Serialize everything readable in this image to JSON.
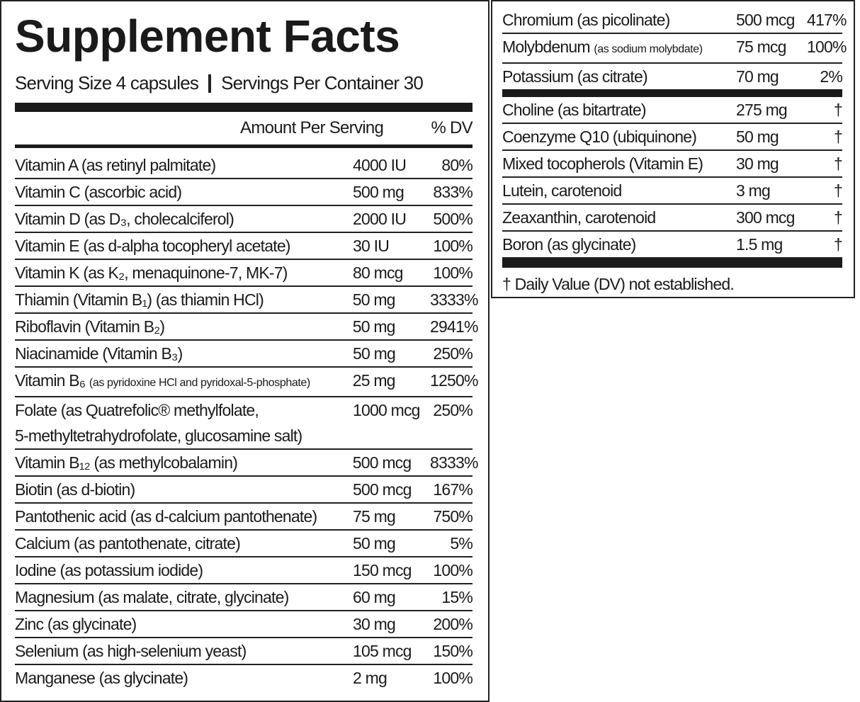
{
  "header": {
    "title": "Supplement Facts",
    "serving_size": "Serving Size 4 capsules",
    "servings_per_container": "Servings Per Container 30"
  },
  "columns": {
    "amount": "Amount Per Serving",
    "dv": "% DV"
  },
  "left_rows": [
    {
      "name": "Vitamin A (as retinyl palmitate)",
      "amount": "4000 IU",
      "dv": "80%"
    },
    {
      "name": "Vitamin C (ascorbic acid)",
      "amount": "500 mg",
      "dv": "833%"
    },
    {
      "name": "Vitamin D (as D₃, cholecalciferol)",
      "amount": "2000 IU",
      "dv": "500%"
    },
    {
      "name": "Vitamin E (as d-alpha tocopheryl acetate)",
      "amount": "30 IU",
      "dv": "100%"
    },
    {
      "name": "Vitamin K (as K₂, menaquinone-7, MK-7)",
      "amount": "80 mcg",
      "dv": "100%"
    },
    {
      "name": "Thiamin (Vitamin B₁) (as thiamin HCl)",
      "amount": "50 mg",
      "dv": "3333%"
    },
    {
      "name": "Riboflavin (Vitamin B₂)",
      "amount": "50 mg",
      "dv": "2941%"
    },
    {
      "name": "Niacinamide (Vitamin B₃)",
      "amount": "50 mg",
      "dv": "250%"
    },
    {
      "name": "Vitamin B₆",
      "note": "(as pyridoxine HCl and pyridoxal-5-phosphate)",
      "amount": "25 mg",
      "dv": "1250%"
    },
    {
      "name": "Folate (as Quatrefolic® methylfolate,\n 5-methyltetrahydrofolate, glucosamine salt)",
      "amount": "1000 mcg",
      "dv": "250%"
    },
    {
      "name": "Vitamin B₁₂ (as methylcobalamin)",
      "amount": "500 mcg",
      "dv": "8333%"
    },
    {
      "name": "Biotin (as d-biotin)",
      "amount": "500 mcg",
      "dv": "167%"
    },
    {
      "name": "Pantothenic acid (as d-calcium pantothenate)",
      "amount": "75 mg",
      "dv": "750%"
    },
    {
      "name": "Calcium (as pantothenate, citrate)",
      "amount": "50 mg",
      "dv": "5%"
    },
    {
      "name": "Iodine (as potassium iodide)",
      "amount": "150 mcg",
      "dv": "100%"
    },
    {
      "name": "Magnesium (as malate, citrate, glycinate)",
      "amount": "60 mg",
      "dv": "15%"
    },
    {
      "name": "Zinc (as glycinate)",
      "amount": "30 mg",
      "dv": "200%"
    },
    {
      "name": "Selenium (as high-selenium yeast)",
      "amount": "105 mcg",
      "dv": "150%"
    },
    {
      "name": "Manganese (as glycinate)",
      "amount": "2 mg",
      "dv": "100%"
    }
  ],
  "right_top": [
    {
      "name": "Chromium (as picolinate)",
      "amount": "500 mcg",
      "dv": "417%"
    },
    {
      "name": "Molybdenum",
      "note": "(as sodium molybdate)",
      "amount": "75 mcg",
      "dv": "100%"
    },
    {
      "name": "Potassium (as citrate)",
      "amount": "70 mg",
      "dv": "2%"
    }
  ],
  "right_bottom": [
    {
      "name": "Choline (as bitartrate)",
      "amount": "275 mg",
      "dv": "†"
    },
    {
      "name": "Coenzyme Q10 (ubiquinone)",
      "amount": "50 mg",
      "dv": "†"
    },
    {
      "name": "Mixed tocopherols (Vitamin E)",
      "amount": "30 mg",
      "dv": "†"
    },
    {
      "name": "Lutein, carotenoid",
      "amount": "3 mg",
      "dv": "†"
    },
    {
      "name": "Zeaxanthin, carotenoid",
      "amount": "300 mcg",
      "dv": "†"
    },
    {
      "name": "Boron (as glycinate)",
      "amount": "1.5 mg",
      "dv": "†"
    }
  ],
  "footnote": "† Daily Value (DV) not established."
}
